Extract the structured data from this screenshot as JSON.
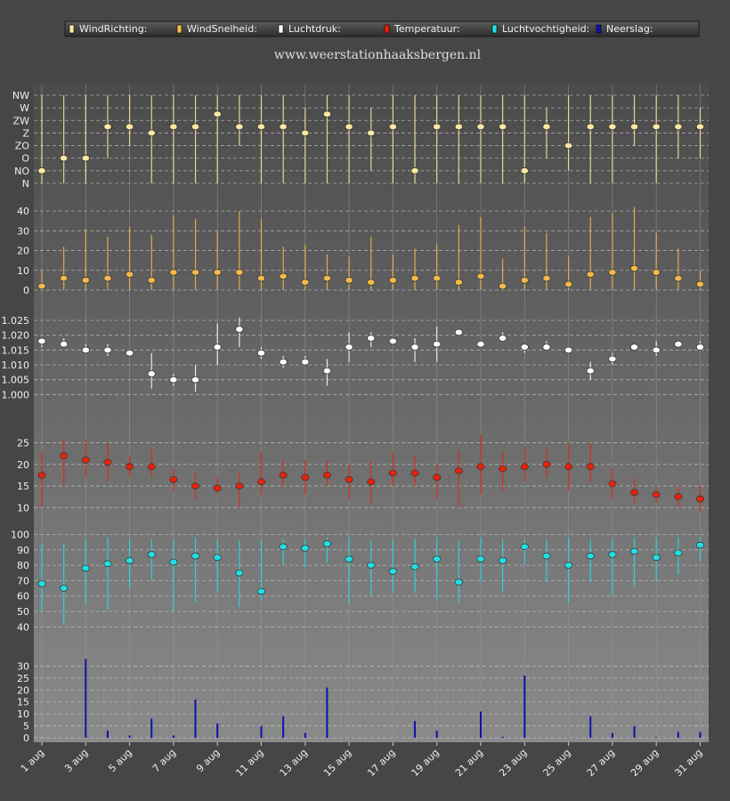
{
  "site": "www.weerstationhaaksbergen.nl",
  "legend": [
    {
      "label": "WindRichting:",
      "color": "#ffe9a0"
    },
    {
      "label": "WindSnelheid:",
      "color": "#f5b94a"
    },
    {
      "label": "Luchtdruk:",
      "color": "#ffffff"
    },
    {
      "label": "Temperatuur:",
      "color": "#e8220a"
    },
    {
      "label": "Luchtvochtigheid:",
      "color": "#20e0e6"
    },
    {
      "label": "Neerslag:",
      "color": "#1010b0"
    }
  ],
  "chart_data": {
    "type": "line",
    "x_labels": [
      "1 aug",
      "3 aug",
      "5 aug",
      "7 aug",
      "9 aug",
      "11 aug",
      "13 aug",
      "15 aug",
      "17 aug",
      "19 aug",
      "21 aug",
      "23 aug",
      "25 aug",
      "27 aug",
      "29 aug",
      "31 aug"
    ],
    "x": [
      "1 aug",
      "2 aug",
      "3 aug",
      "4 aug",
      "5 aug",
      "6 aug",
      "7 aug",
      "8 aug",
      "9 aug",
      "10 aug",
      "11 aug",
      "12 aug",
      "13 aug",
      "14 aug",
      "15 aug",
      "16 aug",
      "17 aug",
      "18 aug",
      "19 aug",
      "20 aug",
      "21 aug",
      "22 aug",
      "23 aug",
      "24 aug",
      "25 aug",
      "26 aug",
      "27 aug",
      "28 aug",
      "29 aug",
      "30 aug",
      "31 aug"
    ],
    "panels": [
      {
        "name": "WindRichting",
        "color": "#ffe9a0",
        "categories": [
          "N",
          "NO",
          "O",
          "ZO",
          "Z",
          "ZW",
          "W",
          "NW"
        ],
        "ticks": [
          "NW",
          "W",
          "ZW",
          "Z",
          "ZO",
          "O",
          "NO",
          "N"
        ],
        "mean": [
          1,
          2,
          2,
          4.5,
          4.5,
          4,
          4.5,
          4.5,
          5.5,
          4.5,
          4.5,
          4.5,
          4,
          5.5,
          4.5,
          4,
          4.5,
          1,
          4.5,
          4.5,
          4.5,
          4.5,
          1,
          4.5,
          3,
          4.5,
          4.5,
          4.5,
          4.5,
          4.5,
          4.5
        ],
        "min": [
          0,
          0,
          0,
          2,
          3,
          0,
          0,
          0,
          0,
          3,
          0,
          0,
          0,
          0,
          0,
          1,
          0,
          0,
          0,
          0,
          0,
          0,
          0,
          2,
          1,
          0,
          0,
          3,
          0,
          2,
          2
        ],
        "max": [
          7,
          7,
          7,
          7,
          7,
          7,
          7,
          7,
          7,
          7,
          7,
          7,
          6,
          7,
          7,
          6,
          7,
          7,
          7,
          7,
          7,
          7,
          7,
          6,
          7,
          7,
          7,
          7,
          7,
          7,
          6
        ]
      },
      {
        "name": "WindSnelheid",
        "color": "#f5b94a",
        "ylim": [
          0,
          45
        ],
        "ticks": [
          0,
          10,
          20,
          30,
          40
        ],
        "mean": [
          2,
          6,
          5,
          6,
          8,
          5,
          9,
          9,
          9,
          9,
          6,
          7,
          4,
          6,
          5,
          4,
          5,
          6,
          6,
          4,
          7,
          2,
          5,
          6,
          3,
          8,
          9,
          11,
          9,
          6,
          3
        ],
        "min": [
          0,
          0,
          0,
          0,
          0,
          0,
          0,
          0,
          0,
          0,
          0,
          0,
          0,
          0,
          0,
          0,
          0,
          0,
          0,
          0,
          0,
          0,
          0,
          0,
          0,
          0,
          0,
          0,
          0,
          0,
          0
        ],
        "max": [
          10,
          22,
          31,
          27,
          32,
          28,
          38,
          36,
          30,
          40,
          36,
          22,
          23,
          18,
          17,
          27,
          18,
          21,
          23,
          33,
          37,
          16,
          32,
          29,
          17,
          37,
          39,
          42,
          29,
          21,
          10
        ]
      },
      {
        "name": "Luchtdruk",
        "color": "#ffffff",
        "ylim": [
          0.995,
          1.028
        ],
        "ticks": [
          1.0,
          1.005,
          1.01,
          1.015,
          1.02,
          1.025
        ],
        "tick_labels": [
          "1.000",
          "1.005",
          "1.010",
          "1.015",
          "1.020",
          "1.025"
        ],
        "mean": [
          1.018,
          1.017,
          1.015,
          1.015,
          1.014,
          1.007,
          1.005,
          1.005,
          1.016,
          1.022,
          1.014,
          1.011,
          1.011,
          1.008,
          1.016,
          1.019,
          1.018,
          1.016,
          1.017,
          1.021,
          1.017,
          1.019,
          1.016,
          1.016,
          1.015,
          1.008,
          1.012,
          1.016,
          1.015,
          1.017,
          1.016
        ],
        "min": [
          1.016,
          1.016,
          1.014,
          1.013,
          1.013,
          1.002,
          1.003,
          1.001,
          1.01,
          1.016,
          1.012,
          1.009,
          1.01,
          1.003,
          1.011,
          1.016,
          1.017,
          1.011,
          1.011,
          1.02,
          1.016,
          1.018,
          1.014,
          1.015,
          1.014,
          1.005,
          1.01,
          1.015,
          1.013,
          1.016,
          1.015
        ],
        "max": [
          1.019,
          1.019,
          1.017,
          1.017,
          1.015,
          1.014,
          1.007,
          1.01,
          1.024,
          1.026,
          1.016,
          1.013,
          1.013,
          1.012,
          1.021,
          1.021,
          1.019,
          1.019,
          1.023,
          1.022,
          1.018,
          1.021,
          1.017,
          1.018,
          1.016,
          1.011,
          1.014,
          1.017,
          1.018,
          1.018,
          1.018
        ]
      },
      {
        "name": "Temperatuur",
        "color": "#e8220a",
        "ylim": [
          8,
          28
        ],
        "ticks": [
          10,
          15,
          20,
          25
        ],
        "mean": [
          17.5,
          22,
          21,
          20.5,
          19.5,
          19.5,
          16.5,
          15,
          14.5,
          15,
          16,
          17.5,
          17,
          17.5,
          16.5,
          16,
          18,
          18,
          17,
          18.5,
          19.5,
          19,
          19.5,
          20,
          19.5,
          19.5,
          15.5,
          13.5,
          13,
          12.5,
          12
        ],
        "min": [
          10,
          15,
          17,
          16,
          17,
          17,
          14,
          12,
          13,
          10,
          13,
          15,
          13,
          15,
          12,
          11,
          15,
          15,
          12,
          10,
          13,
          14,
          16,
          17,
          14,
          16,
          12,
          11,
          11,
          10,
          9
        ],
        "max": [
          23,
          26,
          26,
          25,
          22,
          24,
          19,
          18,
          17,
          18,
          23,
          21,
          21,
          21,
          20,
          21,
          23,
          22,
          20,
          23,
          27,
          23,
          24,
          24,
          25,
          25,
          19,
          17,
          15,
          15,
          15
        ]
      },
      {
        "name": "Luchtvochtigheid",
        "color": "#20e0e6",
        "ylim": [
          35,
          102
        ],
        "ticks": [
          40,
          50,
          60,
          70,
          80,
          90,
          100
        ],
        "mean": [
          68,
          65,
          78,
          81,
          83,
          87,
          82,
          86,
          85,
          75,
          63,
          92,
          91,
          94,
          84,
          80,
          76,
          79,
          84,
          69,
          84,
          83,
          92,
          86,
          80,
          86,
          87,
          89,
          85,
          88,
          93
        ],
        "min": [
          50,
          42,
          55,
          51,
          65,
          70,
          50,
          56,
          62,
          53,
          57,
          80,
          79,
          82,
          55,
          60,
          62,
          62,
          58,
          56,
          69,
          63,
          80,
          69,
          56,
          69,
          60,
          66,
          69,
          74,
          83
        ],
        "max": [
          94,
          94,
          97,
          98,
          97,
          97,
          97,
          98,
          97,
          96,
          96,
          97,
          97,
          98,
          98,
          96,
          97,
          97,
          98,
          96,
          98,
          97,
          97,
          97,
          98,
          97,
          97,
          98,
          98,
          98,
          98
        ]
      },
      {
        "name": "Neerslag",
        "color": "#1010b0",
        "ylim": [
          0,
          35
        ],
        "ticks": [
          0,
          5,
          10,
          15,
          20,
          25,
          30
        ],
        "values": [
          0,
          0,
          33,
          3,
          1,
          8,
          1,
          16,
          6,
          0,
          5,
          9,
          2,
          21,
          0,
          0,
          0,
          7,
          3,
          0,
          11,
          0.5,
          26,
          0,
          0,
          9,
          2,
          5,
          0.3,
          2.5,
          2.5
        ]
      }
    ]
  }
}
